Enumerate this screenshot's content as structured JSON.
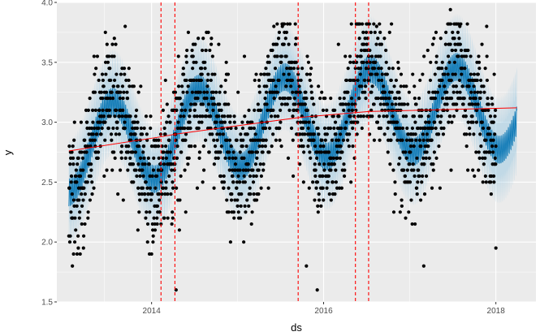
{
  "chart_data": {
    "type": "scatter",
    "title": "",
    "xlabel": "ds",
    "ylabel": "y",
    "xlim": [
      "2012-11-25",
      "2018-06-20"
    ],
    "ylim": [
      1.5,
      4.0
    ],
    "x_ticks": [
      "2014-01-01",
      "2016-01-01",
      "2018-01-01"
    ],
    "x_tick_labels": [
      "2014",
      "2016",
      "2018"
    ],
    "y_ticks": [
      1.5,
      2.0,
      2.5,
      3.0,
      3.5,
      4.0
    ],
    "y_tick_labels": [
      "1.5",
      "2.0",
      "2.5",
      "3.0",
      "3.5",
      "4.0"
    ],
    "grid": true,
    "colors": {
      "panel": "#ebebeb",
      "grid": "#ffffff",
      "points": "#000000",
      "forecast": "#0072b2",
      "interval": "#9ecae1",
      "trend": "#ff0000",
      "changepoints": "#ff0000"
    },
    "observations": {
      "start": "2013-01-15",
      "end": "2018-01-01",
      "trend_start_value": 2.76,
      "trend_end_value": 3.12,
      "seasonal_amplitude": 0.35,
      "peak_month": 7,
      "weekly_amplitude": 0.12,
      "noise_sd": 0.28,
      "step": 0.05,
      "outliers": [
        {
          "ds": "2013-01-30",
          "y": 1.8
        },
        {
          "ds": "2013-03-18",
          "y": 1.95
        },
        {
          "ds": "2014-04-15",
          "y": 1.6
        },
        {
          "ds": "2015-10-20",
          "y": 1.8
        },
        {
          "ds": "2015-12-05",
          "y": 1.6
        },
        {
          "ds": "2017-03-01",
          "y": 1.8
        },
        {
          "ds": "2017-06-22",
          "y": 3.94
        },
        {
          "ds": "2018-01-01",
          "y": 1.95
        }
      ]
    },
    "forecast": {
      "start": "2013-01-15",
      "end": "2018-03-31",
      "interval_width": 0.33
    },
    "trend_line": [
      {
        "ds": "2013-01-15",
        "y": 2.76
      },
      {
        "ds": "2014-02-15",
        "y": 2.88
      },
      {
        "ds": "2014-04-10",
        "y": 2.9
      },
      {
        "ds": "2015-09-20",
        "y": 3.04
      },
      {
        "ds": "2016-05-15",
        "y": 3.08
      },
      {
        "ds": "2016-07-10",
        "y": 3.09
      },
      {
        "ds": "2018-03-31",
        "y": 3.12
      }
    ],
    "changepoints": [
      "2014-02-10",
      "2014-04-10",
      "2015-09-15",
      "2016-05-15",
      "2016-07-10"
    ]
  }
}
